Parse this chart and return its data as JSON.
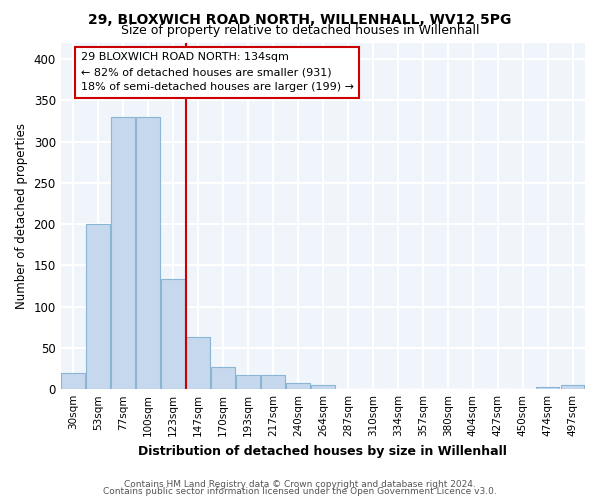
{
  "title1": "29, BLOXWICH ROAD NORTH, WILLENHALL, WV12 5PG",
  "title2": "Size of property relative to detached houses in Willenhall",
  "xlabel": "Distribution of detached houses by size in Willenhall",
  "ylabel": "Number of detached properties",
  "footer1": "Contains HM Land Registry data © Crown copyright and database right 2024.",
  "footer2": "Contains public sector information licensed under the Open Government Licence v3.0.",
  "categories": [
    "30sqm",
    "53sqm",
    "77sqm",
    "100sqm",
    "123sqm",
    "147sqm",
    "170sqm",
    "193sqm",
    "217sqm",
    "240sqm",
    "264sqm",
    "287sqm",
    "310sqm",
    "334sqm",
    "357sqm",
    "380sqm",
    "404sqm",
    "427sqm",
    "450sqm",
    "474sqm",
    "497sqm"
  ],
  "values": [
    20,
    200,
    330,
    330,
    133,
    63,
    27,
    17,
    17,
    8,
    5,
    0,
    0,
    0,
    0,
    0,
    0,
    0,
    0,
    3,
    5
  ],
  "bar_color": "#c5d8ed",
  "bar_edge_color": "#8ab5d4",
  "vline_color": "#cc0000",
  "annotation_line1": "29 BLOXWICH ROAD NORTH: 134sqm",
  "annotation_line2": "← 82% of detached houses are smaller (931)",
  "annotation_line3": "18% of semi-detached houses are larger (199) →",
  "ylim": [
    0,
    420
  ],
  "yticks": [
    0,
    50,
    100,
    150,
    200,
    250,
    300,
    350,
    400
  ],
  "bg_color": "#ffffff",
  "plot_bg_color": "#f0f4fb",
  "grid_color": "#ffffff"
}
